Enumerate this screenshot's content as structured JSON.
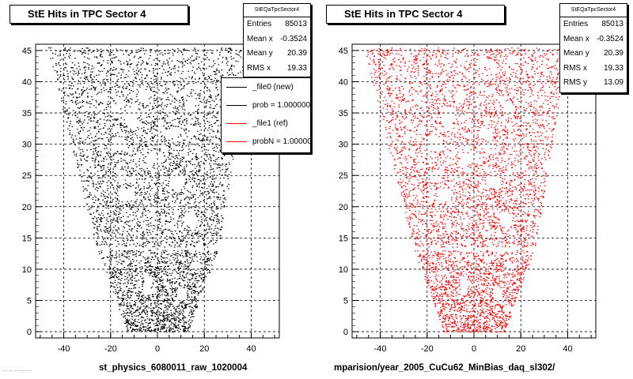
{
  "footer_note": "... ...  .. ...... ....",
  "colors": {
    "left_series": "#000000",
    "right_series": "#ff0000",
    "background": "#ffffff"
  },
  "chart_data": [
    {
      "type": "scatter",
      "title": "StE Hits in TPC Sector 4",
      "xlabel": "st_physics_6080011_raw_1020004",
      "ylabel": "",
      "xlim": [
        -52,
        52
      ],
      "ylim": [
        -1,
        46
      ],
      "x_ticks": [
        -40,
        -20,
        0,
        20,
        40
      ],
      "y_ticks": [
        0,
        5,
        10,
        15,
        20,
        25,
        30,
        35,
        40,
        45
      ],
      "grid": true,
      "stats": {
        "header": "StEQaTpcSector4",
        "rows": [
          {
            "label": "Entries",
            "value": "85013"
          },
          {
            "label": "Mean x",
            "value": "-0.3524"
          },
          {
            "label": "Mean y",
            "value": "20.39"
          },
          {
            "label": "RMS x",
            "value": "19.33"
          }
        ]
      },
      "legend": {
        "placement": "top-right",
        "entries": [
          {
            "label": "_file0 (new)",
            "color": "#000000"
          },
          {
            "label": "prob = 1.000000",
            "color": "#000000"
          },
          {
            "label": "_file1 (ref)",
            "color": "#ff0000"
          },
          {
            "label": "probN = 1.000000",
            "color": "#ff0000"
          }
        ]
      },
      "series": [
        {
          "color": "#000000",
          "shape_bounds": [
            [
              0,
              -13,
              13
            ],
            [
              13.5,
              -26,
              26
            ],
            [
              45.5,
              -47,
              40
            ]
          ],
          "row_gaps": [
            13.1,
            13.6
          ],
          "values": "dense point cloud of TPC hits"
        }
      ]
    },
    {
      "type": "scatter",
      "title": "StE Hits in TPC Sector 4",
      "xlabel": "mparision/year_2005_CuCu62_MinBias_daq_sl302/",
      "ylabel": "",
      "xlim": [
        -52,
        52
      ],
      "ylim": [
        -1,
        46
      ],
      "x_ticks": [
        -40,
        -20,
        0,
        20,
        40
      ],
      "y_ticks": [
        0,
        5,
        10,
        15,
        20,
        25,
        30,
        35,
        40,
        45
      ],
      "grid": true,
      "stats": {
        "header": "StEQaTpcSector4",
        "rows": [
          {
            "label": "Entries",
            "value": "85013"
          },
          {
            "label": "Mean x",
            "value": "-0.3524"
          },
          {
            "label": "Mean y",
            "value": "20.39"
          },
          {
            "label": "RMS x",
            "value": "19.33"
          },
          {
            "label": "RMS y",
            "value": "13.09"
          }
        ]
      },
      "series": [
        {
          "color": "#ff0000",
          "shape_bounds": [
            [
              0,
              -13,
              13
            ],
            [
              13.5,
              -26,
              26
            ],
            [
              45.5,
              -47,
              40
            ]
          ],
          "row_gaps": [
            13.1,
            13.6
          ],
          "values": "dense point cloud of TPC hits"
        }
      ]
    }
  ]
}
